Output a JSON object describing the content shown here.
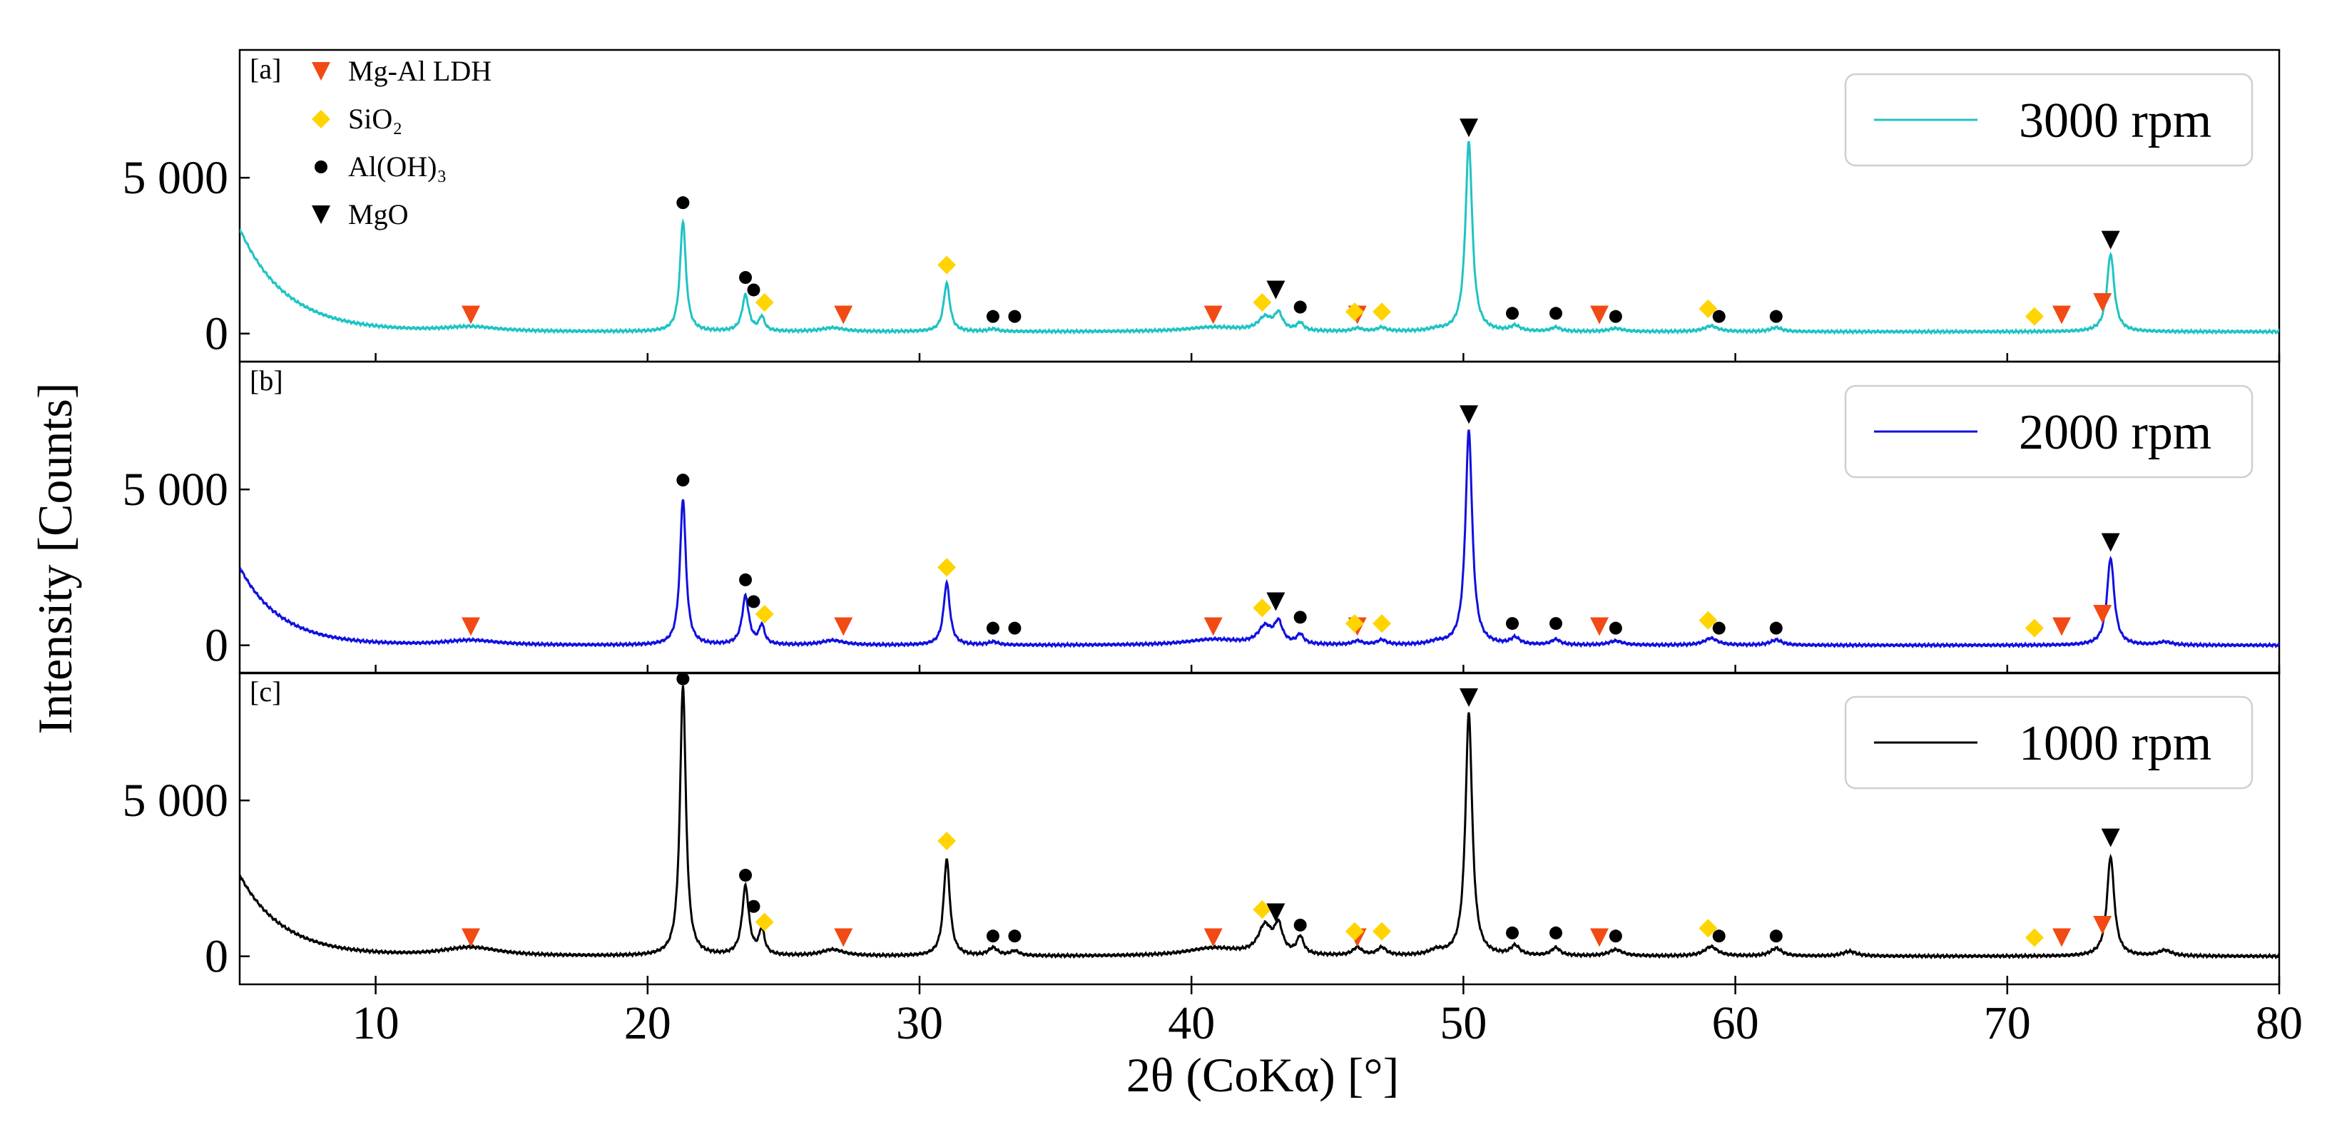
{
  "chart_data": {
    "type": "line",
    "xlabel": "2θ (CoKα) [°]",
    "ylabel": "Intensity [Counts]",
    "xlim": [
      5,
      80
    ],
    "xticks": [
      10,
      20,
      30,
      40,
      50,
      60,
      70,
      80
    ],
    "ylim": [
      -900,
      9100
    ],
    "yticks": [
      0,
      5000
    ],
    "ytick_labels": [
      "0",
      "5 000"
    ],
    "legend_placement": "top-right",
    "grid": false,
    "marker_legend": [
      {
        "label": "Mg-Al LDH",
        "symbol": "triangle-down",
        "color": "#F24A14"
      },
      {
        "label": "SiO₂",
        "symbol": "diamond",
        "color": "#FFD400"
      },
      {
        "label": "Al(OH)₃",
        "symbol": "circle",
        "color": "#000000"
      },
      {
        "label": "MgO",
        "symbol": "triangle-down",
        "color": "#000000"
      }
    ],
    "panels": [
      {
        "tag": "[a]",
        "series_name": "3000 rpm",
        "color": "#1FC3C3",
        "background": {
          "start": 3300,
          "decay": 1.7,
          "floor": 60
        },
        "peaks": [
          [
            13.5,
            150,
            1.2
          ],
          [
            21.3,
            3550,
            0.13
          ],
          [
            23.6,
            1150,
            0.15
          ],
          [
            24.2,
            450,
            0.12
          ],
          [
            26.8,
            120,
            0.5
          ],
          [
            31.0,
            1550,
            0.14
          ],
          [
            32.7,
            80,
            0.2
          ],
          [
            40.8,
            140,
            1.2
          ],
          [
            42.7,
            420,
            0.3
          ],
          [
            43.2,
            520,
            0.18
          ],
          [
            44.0,
            250,
            0.15
          ],
          [
            46.1,
            100,
            0.2
          ],
          [
            47.0,
            120,
            0.2
          ],
          [
            49.0,
            60,
            0.3
          ],
          [
            50.2,
            6100,
            0.15
          ],
          [
            51.9,
            170,
            0.2
          ],
          [
            53.4,
            130,
            0.2
          ],
          [
            55.6,
            100,
            0.3
          ],
          [
            59.1,
            180,
            0.3
          ],
          [
            61.5,
            130,
            0.25
          ],
          [
            73.8,
            2500,
            0.16
          ]
        ],
        "markers": [
          {
            "kind": "ldh",
            "x": 13.5,
            "y": 600
          },
          {
            "kind": "ldh",
            "x": 27.2,
            "y": 600
          },
          {
            "kind": "ldh",
            "x": 40.8,
            "y": 600
          },
          {
            "kind": "ldh",
            "x": 46.1,
            "y": 600
          },
          {
            "kind": "ldh",
            "x": 55.0,
            "y": 600
          },
          {
            "kind": "ldh",
            "x": 72.0,
            "y": 600
          },
          {
            "kind": "ldh",
            "x": 73.5,
            "y": 1000
          },
          {
            "kind": "sio2",
            "x": 24.3,
            "y": 1000
          },
          {
            "kind": "sio2",
            "x": 31.0,
            "y": 2200
          },
          {
            "kind": "sio2",
            "x": 42.6,
            "y": 1000
          },
          {
            "kind": "sio2",
            "x": 46.0,
            "y": 700
          },
          {
            "kind": "sio2",
            "x": 47.0,
            "y": 700
          },
          {
            "kind": "sio2",
            "x": 59.0,
            "y": 800
          },
          {
            "kind": "sio2",
            "x": 71.0,
            "y": 550
          },
          {
            "kind": "aloh3",
            "x": 21.3,
            "y": 4200
          },
          {
            "kind": "aloh3",
            "x": 23.6,
            "y": 1800
          },
          {
            "kind": "aloh3",
            "x": 23.9,
            "y": 1400
          },
          {
            "kind": "aloh3",
            "x": 32.7,
            "y": 550
          },
          {
            "kind": "aloh3",
            "x": 33.5,
            "y": 550
          },
          {
            "kind": "aloh3",
            "x": 44.0,
            "y": 850
          },
          {
            "kind": "aloh3",
            "x": 51.8,
            "y": 650
          },
          {
            "kind": "aloh3",
            "x": 53.4,
            "y": 650
          },
          {
            "kind": "aloh3",
            "x": 55.6,
            "y": 550
          },
          {
            "kind": "aloh3",
            "x": 59.4,
            "y": 550
          },
          {
            "kind": "aloh3",
            "x": 61.5,
            "y": 550
          },
          {
            "kind": "mgo",
            "x": 43.1,
            "y": 1400
          },
          {
            "kind": "mgo",
            "x": 50.2,
            "y": 6600
          },
          {
            "kind": "mgo",
            "x": 73.8,
            "y": 3000
          }
        ]
      },
      {
        "tag": "[b]",
        "series_name": "2000 rpm",
        "color": "#1010E0",
        "background": {
          "start": 2500,
          "decay": 1.5,
          "floor": 0
        },
        "peaks": [
          [
            13.5,
            160,
            1.2
          ],
          [
            21.3,
            4700,
            0.13
          ],
          [
            23.6,
            1550,
            0.15
          ],
          [
            24.2,
            600,
            0.12
          ],
          [
            26.8,
            150,
            0.5
          ],
          [
            31.0,
            2000,
            0.14
          ],
          [
            32.7,
            100,
            0.2
          ],
          [
            40.8,
            180,
            1.2
          ],
          [
            42.7,
            550,
            0.3
          ],
          [
            43.2,
            650,
            0.18
          ],
          [
            44.0,
            300,
            0.15
          ],
          [
            46.1,
            120,
            0.2
          ],
          [
            47.0,
            150,
            0.2
          ],
          [
            49.0,
            80,
            0.3
          ],
          [
            50.2,
            6900,
            0.15
          ],
          [
            51.9,
            220,
            0.2
          ],
          [
            53.4,
            170,
            0.2
          ],
          [
            55.6,
            130,
            0.3
          ],
          [
            59.1,
            220,
            0.3
          ],
          [
            61.5,
            170,
            0.25
          ],
          [
            73.8,
            2800,
            0.16
          ],
          [
            75.8,
            100,
            0.3
          ]
        ],
        "markers": [
          {
            "kind": "ldh",
            "x": 13.5,
            "y": 600
          },
          {
            "kind": "ldh",
            "x": 27.2,
            "y": 600
          },
          {
            "kind": "ldh",
            "x": 40.8,
            "y": 600
          },
          {
            "kind": "ldh",
            "x": 46.1,
            "y": 600
          },
          {
            "kind": "ldh",
            "x": 55.0,
            "y": 600
          },
          {
            "kind": "ldh",
            "x": 72.0,
            "y": 600
          },
          {
            "kind": "ldh",
            "x": 73.5,
            "y": 1000
          },
          {
            "kind": "sio2",
            "x": 24.3,
            "y": 1000
          },
          {
            "kind": "sio2",
            "x": 31.0,
            "y": 2500
          },
          {
            "kind": "sio2",
            "x": 42.6,
            "y": 1200
          },
          {
            "kind": "sio2",
            "x": 46.0,
            "y": 700
          },
          {
            "kind": "sio2",
            "x": 47.0,
            "y": 700
          },
          {
            "kind": "sio2",
            "x": 59.0,
            "y": 800
          },
          {
            "kind": "sio2",
            "x": 71.0,
            "y": 550
          },
          {
            "kind": "aloh3",
            "x": 21.3,
            "y": 5300
          },
          {
            "kind": "aloh3",
            "x": 23.6,
            "y": 2100
          },
          {
            "kind": "aloh3",
            "x": 23.9,
            "y": 1400
          },
          {
            "kind": "aloh3",
            "x": 32.7,
            "y": 550
          },
          {
            "kind": "aloh3",
            "x": 33.5,
            "y": 550
          },
          {
            "kind": "aloh3",
            "x": 44.0,
            "y": 900
          },
          {
            "kind": "aloh3",
            "x": 51.8,
            "y": 700
          },
          {
            "kind": "aloh3",
            "x": 53.4,
            "y": 700
          },
          {
            "kind": "aloh3",
            "x": 55.6,
            "y": 550
          },
          {
            "kind": "aloh3",
            "x": 59.4,
            "y": 550
          },
          {
            "kind": "aloh3",
            "x": 61.5,
            "y": 550
          },
          {
            "kind": "mgo",
            "x": 43.1,
            "y": 1400
          },
          {
            "kind": "mgo",
            "x": 50.2,
            "y": 7400
          },
          {
            "kind": "mgo",
            "x": 73.8,
            "y": 3300
          }
        ]
      },
      {
        "tag": "[c]",
        "series_name": "1000 rpm",
        "color": "#000000",
        "background": {
          "start": 2600,
          "decay": 1.6,
          "floor": 0
        },
        "peaks": [
          [
            13.5,
            280,
            1.3
          ],
          [
            21.3,
            8700,
            0.13
          ],
          [
            23.6,
            2200,
            0.15
          ],
          [
            24.2,
            800,
            0.12
          ],
          [
            26.8,
            200,
            0.5
          ],
          [
            31.0,
            3100,
            0.14
          ],
          [
            32.7,
            250,
            0.2
          ],
          [
            33.5,
            150,
            0.2
          ],
          [
            40.8,
            250,
            1.2
          ],
          [
            42.7,
            900,
            0.3
          ],
          [
            43.2,
            850,
            0.18
          ],
          [
            44.0,
            550,
            0.15
          ],
          [
            46.1,
            250,
            0.2
          ],
          [
            47.0,
            250,
            0.2
          ],
          [
            49.0,
            150,
            0.3
          ],
          [
            50.2,
            7800,
            0.15
          ],
          [
            51.9,
            300,
            0.2
          ],
          [
            53.4,
            250,
            0.2
          ],
          [
            55.6,
            200,
            0.3
          ],
          [
            59.1,
            300,
            0.3
          ],
          [
            61.5,
            250,
            0.25
          ],
          [
            64.2,
            150,
            0.3
          ],
          [
            73.8,
            3200,
            0.16
          ],
          [
            75.8,
            180,
            0.3
          ]
        ],
        "markers": [
          {
            "kind": "ldh",
            "x": 13.5,
            "y": 600
          },
          {
            "kind": "ldh",
            "x": 27.2,
            "y": 600
          },
          {
            "kind": "ldh",
            "x": 40.8,
            "y": 600
          },
          {
            "kind": "ldh",
            "x": 46.1,
            "y": 600
          },
          {
            "kind": "ldh",
            "x": 55.0,
            "y": 600
          },
          {
            "kind": "ldh",
            "x": 72.0,
            "y": 600
          },
          {
            "kind": "ldh",
            "x": 73.5,
            "y": 1000
          },
          {
            "kind": "sio2",
            "x": 24.3,
            "y": 1100
          },
          {
            "kind": "sio2",
            "x": 31.0,
            "y": 3700
          },
          {
            "kind": "sio2",
            "x": 42.6,
            "y": 1500
          },
          {
            "kind": "sio2",
            "x": 46.0,
            "y": 800
          },
          {
            "kind": "sio2",
            "x": 47.0,
            "y": 800
          },
          {
            "kind": "sio2",
            "x": 59.0,
            "y": 900
          },
          {
            "kind": "sio2",
            "x": 71.0,
            "y": 600
          },
          {
            "kind": "aloh3",
            "x": 21.3,
            "y": 8900
          },
          {
            "kind": "aloh3",
            "x": 23.6,
            "y": 2600
          },
          {
            "kind": "aloh3",
            "x": 23.9,
            "y": 1600
          },
          {
            "kind": "aloh3",
            "x": 32.7,
            "y": 650
          },
          {
            "kind": "aloh3",
            "x": 33.5,
            "y": 650
          },
          {
            "kind": "aloh3",
            "x": 44.0,
            "y": 1000
          },
          {
            "kind": "aloh3",
            "x": 51.8,
            "y": 750
          },
          {
            "kind": "aloh3",
            "x": 53.4,
            "y": 750
          },
          {
            "kind": "aloh3",
            "x": 55.6,
            "y": 650
          },
          {
            "kind": "aloh3",
            "x": 59.4,
            "y": 650
          },
          {
            "kind": "aloh3",
            "x": 61.5,
            "y": 650
          },
          {
            "kind": "mgo",
            "x": 43.1,
            "y": 1400
          },
          {
            "kind": "mgo",
            "x": 50.2,
            "y": 8300
          },
          {
            "kind": "mgo",
            "x": 73.8,
            "y": 3800
          }
        ]
      }
    ]
  }
}
